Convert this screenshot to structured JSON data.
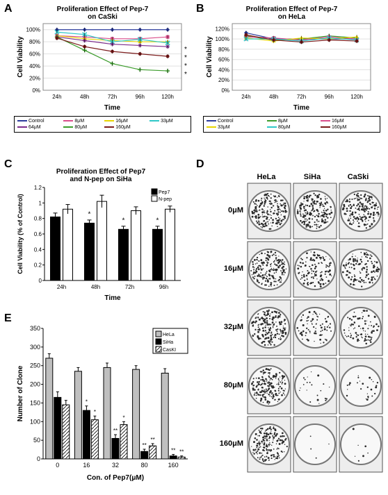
{
  "panels": {
    "A": "A",
    "B": "B",
    "C": "C",
    "D": "D",
    "E": "E"
  },
  "chartA": {
    "title": "Proliferation Effect of Pep-7\non CaSki",
    "xlabel": "Time",
    "ylabel": "Cell Viability",
    "xcats": [
      "24h",
      "48h",
      "72h",
      "96h",
      "120h"
    ],
    "yticks": [
      0,
      20,
      40,
      60,
      80,
      100
    ],
    "ytick_labels": [
      "0%",
      "20%",
      "40%",
      "60%",
      "80%",
      "100%"
    ],
    "series": [
      {
        "name": "Control",
        "color": "#2a3a9b",
        "marker": "diamond",
        "vals": [
          100,
          100,
          100,
          100,
          100
        ]
      },
      {
        "name": "8μM",
        "color": "#d94c8a",
        "marker": "square",
        "vals": [
          90,
          88,
          85,
          85,
          88
        ]
      },
      {
        "name": "16μM",
        "color": "#e8d400",
        "marker": "triangle",
        "vals": [
          90,
          85,
          82,
          80,
          80
        ]
      },
      {
        "name": "33μM",
        "color": "#2ec7c7",
        "marker": "x",
        "vals": [
          96,
          92,
          80,
          84,
          78
        ]
      },
      {
        "name": "64μM",
        "color": "#7a2a8a",
        "marker": "star",
        "vals": [
          88,
          82,
          76,
          74,
          72
        ]
      },
      {
        "name": "80μM",
        "color": "#3a9b2a",
        "marker": "cross",
        "vals": [
          88,
          66,
          44,
          34,
          32
        ]
      },
      {
        "name": "160μM",
        "color": "#7a1a1a",
        "marker": "circle",
        "vals": [
          86,
          72,
          64,
          60,
          56
        ]
      }
    ],
    "stars": [
      "*",
      "*",
      "*",
      "*"
    ],
    "legend_cols": 4
  },
  "chartB": {
    "title": "Proliferation Effect of Pep-7\non HeLa",
    "xlabel": "Time",
    "ylabel": "Cell Viability",
    "xcats": [
      "24h",
      "48h",
      "72h",
      "96h",
      "120h"
    ],
    "yticks": [
      0,
      20,
      40,
      60,
      80,
      100,
      120
    ],
    "ytick_labels": [
      "0%",
      "20%",
      "40%",
      "60%",
      "80%",
      "100%",
      "120%"
    ],
    "series": [
      {
        "name": "Control",
        "color": "#2a3a9b",
        "marker": "diamond",
        "vals": [
          112,
          100,
          100,
          100,
          100
        ]
      },
      {
        "name": "8μM",
        "color": "#3a9b2a",
        "marker": "cross",
        "vals": [
          106,
          98,
          100,
          106,
          102
        ]
      },
      {
        "name": "16μM",
        "color": "#d94c8a",
        "marker": "square",
        "vals": [
          104,
          102,
          98,
          104,
          100
        ]
      },
      {
        "name": "33μM",
        "color": "#e8d400",
        "marker": "triangle",
        "vals": [
          102,
          96,
          102,
          100,
          104
        ]
      },
      {
        "name": "80μM",
        "color": "#2ec7c7",
        "marker": "x",
        "vals": [
          100,
          100,
          96,
          102,
          98
        ]
      },
      {
        "name": "160μM",
        "color": "#7a1a1a",
        "marker": "circle",
        "vals": [
          108,
          98,
          94,
          98,
          96
        ]
      }
    ],
    "legend_cols": 3
  },
  "chartC": {
    "title": "Proliferation Effect of Pep7\nand N-pep on SiHa",
    "xlabel": "Time",
    "ylabel": "Cell Viability (% of Control)",
    "xcats": [
      "24h",
      "48h",
      "72h",
      "96h"
    ],
    "yticks": [
      0,
      0.2,
      0.4,
      0.6,
      0.8,
      1.0,
      1.2
    ],
    "series": [
      {
        "name": "Pep7",
        "color": "#000000",
        "vals": [
          0.82,
          0.74,
          0.66,
          0.66
        ],
        "err": [
          0.05,
          0.04,
          0.04,
          0.04
        ]
      },
      {
        "name": "N-pep",
        "color": "#ffffff",
        "vals": [
          0.92,
          1.02,
          0.9,
          0.92
        ],
        "err": [
          0.06,
          0.08,
          0.05,
          0.04
        ]
      }
    ],
    "stars": [
      "",
      "*",
      "*",
      "*"
    ]
  },
  "panelD": {
    "col_labels": [
      "HeLa",
      "SiHa",
      "CaSki"
    ],
    "row_labels": [
      "0μM",
      "16μM",
      "32μM",
      "80μM",
      "160μM"
    ],
    "density": [
      [
        0.95,
        0.9,
        0.92
      ],
      [
        0.92,
        0.55,
        0.6
      ],
      [
        0.88,
        0.35,
        0.4
      ],
      [
        0.85,
        0.1,
        0.12
      ],
      [
        0.82,
        0.02,
        0.03
      ]
    ],
    "well_border": "#666",
    "well_bg": "#f0f0f0",
    "dot_color": "#2a2a2a"
  },
  "chartE": {
    "xlabel": "Con. of Pep7(μM)",
    "ylabel": "Number of Clone",
    "xcats": [
      "0",
      "16",
      "32",
      "80",
      "160"
    ],
    "yticks": [
      0,
      50,
      100,
      150,
      200,
      250,
      300,
      350
    ],
    "series": [
      {
        "name": "HeLa",
        "pattern": "solid",
        "color": "#bfbfbf",
        "vals": [
          270,
          235,
          245,
          240,
          230
        ],
        "err": [
          12,
          10,
          12,
          10,
          12
        ],
        "stars": [
          "",
          "",
          "",
          "",
          ""
        ]
      },
      {
        "name": "SiHa",
        "pattern": "solid",
        "color": "#000000",
        "vals": [
          165,
          130,
          55,
          20,
          8
        ],
        "err": [
          15,
          12,
          10,
          6,
          4
        ],
        "stars": [
          "",
          "*",
          "**",
          "**",
          "**"
        ]
      },
      {
        "name": "CasKI",
        "pattern": "hatch",
        "color": "#ffffff",
        "vals": [
          145,
          105,
          92,
          35,
          5
        ],
        "err": [
          12,
          10,
          8,
          6,
          3
        ],
        "stars": [
          "",
          "*",
          "*",
          "**",
          "**"
        ]
      }
    ]
  },
  "colors": {
    "grid": "#e0e0e0",
    "axis": "#000000",
    "text": "#000000",
    "bg": "#ffffff"
  }
}
